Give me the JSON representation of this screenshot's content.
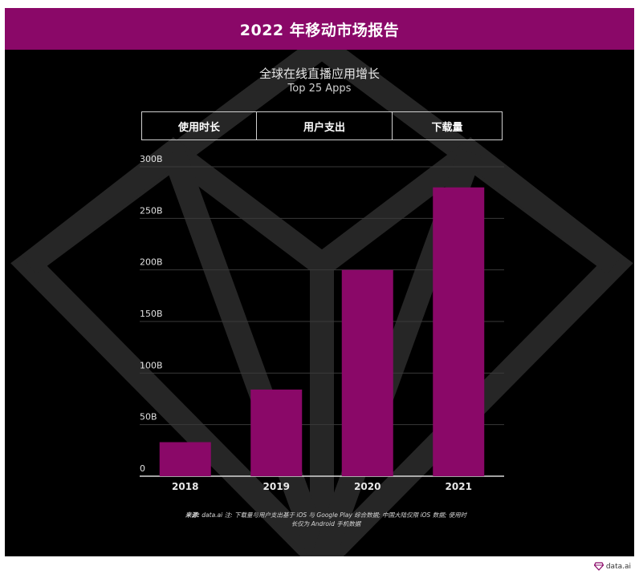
{
  "header": {
    "title": "2022 年移动市场报告"
  },
  "chart_header": {
    "title": "全球在线直播应用增长",
    "subtitle": "Top 25 Apps"
  },
  "tabs": [
    {
      "label": "使用时长"
    },
    {
      "label": "用户支出"
    },
    {
      "label": "下载量"
    }
  ],
  "footnote": {
    "source_label": "来源:",
    "source_text": "data.ai 注: 下载量与用户支出基于 iOS 与 Google Play 综合数据; 中国大陆仅限 iOS 数据; 使用时",
    "line2": "长仅为 Android 手机数据"
  },
  "brand": {
    "name": "data.ai",
    "icon": "diamond-logo-icon"
  },
  "colors": {
    "accent": "#8a0868",
    "background": "#000000",
    "grid": "#3a3a3a"
  },
  "chart_data": {
    "type": "bar",
    "categories": [
      "2018",
      "2019",
      "2020",
      "2021"
    ],
    "values": [
      33,
      84,
      200,
      280
    ],
    "ylim": [
      0,
      300
    ],
    "yticks": [
      {
        "value": 0,
        "label": "0"
      },
      {
        "value": 50,
        "label": "50B"
      },
      {
        "value": 100,
        "label": "100B"
      },
      {
        "value": 150,
        "label": "150B"
      },
      {
        "value": 200,
        "label": "200B"
      },
      {
        "value": 250,
        "label": "250B"
      },
      {
        "value": 300,
        "label": "300B"
      }
    ],
    "grid": true,
    "bar_color": "#8a0868"
  }
}
